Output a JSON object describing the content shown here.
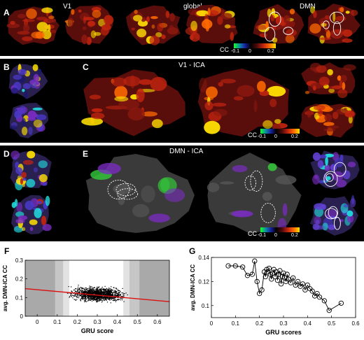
{
  "panels": {
    "A": {
      "label": "A",
      "titles": [
        "V1",
        "global",
        "DMN"
      ]
    },
    "B": {
      "label": "B"
    },
    "C": {
      "label": "C",
      "title": "V1 - ICA"
    },
    "D": {
      "label": "D"
    },
    "E": {
      "label": "E",
      "title": "DMN - ICA"
    },
    "F": {
      "label": "F"
    },
    "G": {
      "label": "G"
    }
  },
  "colorbar_A": {
    "label": "CC",
    "ticks": [
      "-0.1",
      "0",
      "0.2"
    ]
  },
  "colorbar_C": {
    "label": "CC",
    "ticks": [
      "-0.1",
      "0",
      "0.2"
    ]
  },
  "colorbar_E": {
    "label": "CC",
    "ticks": [
      "-0.1",
      "0",
      "0.2"
    ]
  },
  "colors": {
    "hot_dark": "#5a0e0b",
    "hot_mid": "#c0240f",
    "hot_bright": "#ff6a00",
    "hot_top": "#ffe000",
    "brain_gray": "#3a3a3a",
    "contour": "#ffffff",
    "blue": "#4a38c8",
    "purple": "#7a2cc0",
    "cyan": "#20e0e0",
    "green": "#34c83a",
    "fit_line": "#dd1111"
  },
  "chart_data": [
    {
      "type": "scatter",
      "panel": "F",
      "xlabel": "GRU score",
      "ylabel": "avg. DMN-ICA CC",
      "xlim": [
        -0.06,
        0.66
      ],
      "ylim": [
        0,
        0.3
      ],
      "xticks": [
        "0",
        "0.1",
        "0.2",
        "0.3",
        "0.4",
        "0.5",
        "0.6"
      ],
      "yticks": [
        "0",
        "0.1",
        "0.2",
        "0.3"
      ],
      "shaded_x_ranges": [
        [
          -0.06,
          0.09
        ],
        [
          0.09,
          0.13
        ],
        [
          0.13,
          0.16
        ],
        [
          0.43,
          0.46
        ],
        [
          0.46,
          0.51
        ],
        [
          0.51,
          0.66
        ]
      ],
      "fit_line": {
        "x": [
          -0.06,
          0.66
        ],
        "y": [
          0.148,
          0.078
        ]
      },
      "cloud": {
        "x_center": 0.3,
        "x_spread": 0.17,
        "y_center": 0.12,
        "y_spread": 0.05
      }
    },
    {
      "type": "line",
      "panel": "G",
      "xlabel": "GRU scores",
      "ylabel": "avg. DMN-ICA CC",
      "xlim": [
        0,
        0.6
      ],
      "ylim": [
        0.09,
        0.14
      ],
      "xticks": [
        "0",
        "0.1",
        "0.2",
        "0.3",
        "0.4",
        "0.5",
        "0.6"
      ],
      "yticks": [
        "0.1",
        "0.12",
        "0.14"
      ],
      "x": [
        0.07,
        0.1,
        0.13,
        0.15,
        0.17,
        0.18,
        0.19,
        0.2,
        0.21,
        0.22,
        0.225,
        0.23,
        0.235,
        0.24,
        0.245,
        0.25,
        0.255,
        0.26,
        0.265,
        0.27,
        0.275,
        0.28,
        0.285,
        0.29,
        0.295,
        0.3,
        0.305,
        0.31,
        0.315,
        0.32,
        0.33,
        0.34,
        0.35,
        0.36,
        0.37,
        0.38,
        0.39,
        0.4,
        0.41,
        0.42,
        0.43,
        0.44,
        0.45,
        0.47,
        0.49,
        0.54
      ],
      "y": [
        0.133,
        0.133,
        0.132,
        0.125,
        0.126,
        0.137,
        0.12,
        0.11,
        0.113,
        0.128,
        0.124,
        0.13,
        0.128,
        0.131,
        0.126,
        0.122,
        0.127,
        0.13,
        0.124,
        0.128,
        0.121,
        0.126,
        0.129,
        0.118,
        0.124,
        0.127,
        0.123,
        0.12,
        0.126,
        0.122,
        0.119,
        0.123,
        0.117,
        0.12,
        0.116,
        0.118,
        0.113,
        0.117,
        0.114,
        0.112,
        0.108,
        0.11,
        0.107,
        0.104,
        0.096,
        0.102
      ]
    }
  ]
}
